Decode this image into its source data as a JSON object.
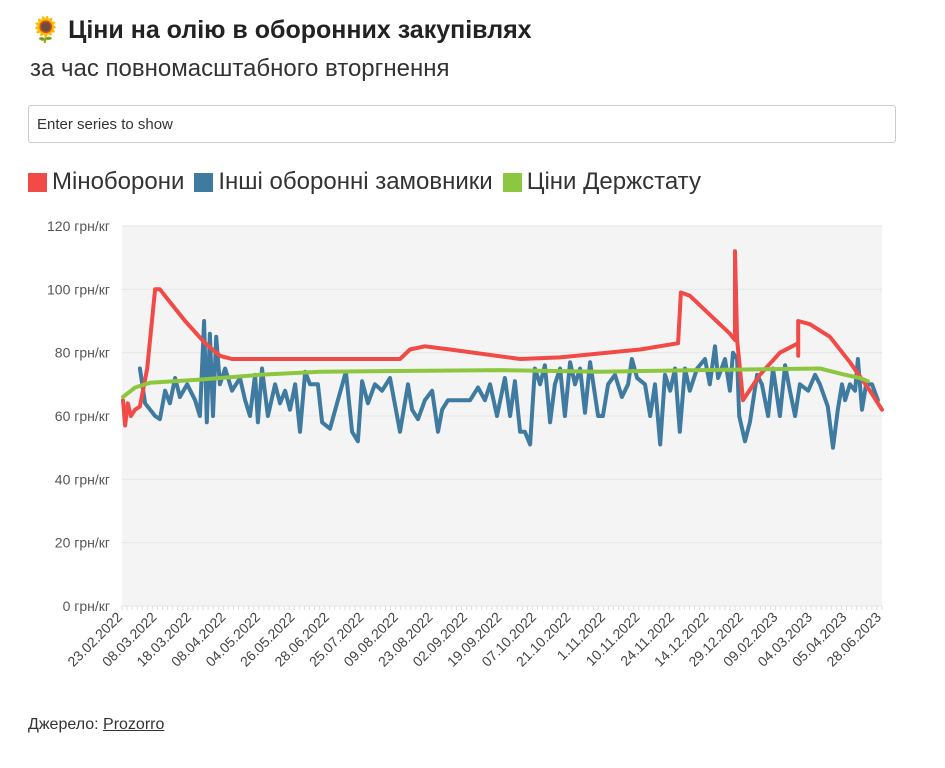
{
  "header": {
    "icon": "sunflower-icon",
    "emoji": "🌻",
    "title": "Ціни на олію в оборонних закупівлях",
    "subtitle": "за час повномасштабного вторгнення"
  },
  "filter": {
    "placeholder": "Enter series to show",
    "value": ""
  },
  "footer": {
    "source_label": "Джерело:",
    "source_link": "Prozorro"
  },
  "chart_data": {
    "type": "line",
    "title": "Ціни на олію в оборонних закупівлях",
    "subtitle": "за час повномасштабного вторгнення",
    "xlabel": "",
    "ylabel": "",
    "x_axis_type": "category",
    "x_tick_labels": [
      "23.02.2022",
      "08.03.2022",
      "18.03.2022",
      "08.04.2022",
      "04.05.2022",
      "26.05.2022",
      "28.06.2022",
      "25.07.2022",
      "09.08.2022",
      "23.08.2022",
      "02.09.2022",
      "19.09.2022",
      "07.10.2022",
      "21.10.2022",
      "1.11.2022",
      "10.11.2022",
      "24.11.2022",
      "14.12.2022",
      "29.12.2022",
      "09.02.2023",
      "04.03.2023",
      "05.04.2023",
      "28.06.2023"
    ],
    "y_ticks": [
      0,
      20,
      40,
      60,
      80,
      100,
      120
    ],
    "y_tick_labels": [
      "0 грн/кг",
      "20 грн/кг",
      "40 грн/кг",
      "60 грн/кг",
      "80 грн/кг",
      "100 грн/кг",
      "120 грн/кг"
    ],
    "ylim": [
      0,
      120
    ],
    "grid": true,
    "legend_position": "top-left",
    "series": [
      {
        "name": "Міноборони",
        "color": "#f24a46",
        "points": [
          [
            0,
            65
          ],
          [
            0.06,
            57
          ],
          [
            0.14,
            64
          ],
          [
            0.23,
            60
          ],
          [
            0.35,
            62
          ],
          [
            0.49,
            63
          ],
          [
            0.7,
            75
          ],
          [
            0.93,
            100
          ],
          [
            1.07,
            100
          ],
          [
            1.36,
            96
          ],
          [
            1.8,
            90
          ],
          [
            2.38,
            83
          ],
          [
            2.81,
            79
          ],
          [
            3.16,
            78
          ],
          [
            8.03,
            78
          ],
          [
            8.32,
            81
          ],
          [
            8.75,
            82
          ],
          [
            9.48,
            81
          ],
          [
            11.51,
            78
          ],
          [
            12.67,
            78.5
          ],
          [
            14.99,
            81
          ],
          [
            16.09,
            83
          ],
          [
            16.17,
            99
          ],
          [
            16.43,
            98
          ],
          [
            17.01,
            92
          ],
          [
            17.59,
            86
          ],
          [
            17.74,
            84
          ],
          [
            17.74,
            112
          ],
          [
            17.8,
            84
          ],
          [
            17.97,
            65
          ],
          [
            18.46,
            73
          ],
          [
            19.04,
            80
          ],
          [
            19.57,
            83
          ],
          [
            19.57,
            79
          ],
          [
            19.57,
            90
          ],
          [
            19.91,
            89
          ],
          [
            20.49,
            85
          ],
          [
            21.07,
            77
          ],
          [
            21.65,
            68
          ],
          [
            22,
            62
          ]
        ]
      },
      {
        "name": "Інші оборонні замовники",
        "color": "#3f7aa0",
        "points": [
          [
            0.49,
            75
          ],
          [
            0.64,
            64
          ],
          [
            0.93,
            60
          ],
          [
            1.07,
            59
          ],
          [
            1.22,
            68
          ],
          [
            1.36,
            64
          ],
          [
            1.51,
            72
          ],
          [
            1.65,
            66
          ],
          [
            1.86,
            70
          ],
          [
            2.09,
            65
          ],
          [
            2.23,
            60
          ],
          [
            2.35,
            90
          ],
          [
            2.43,
            58
          ],
          [
            2.52,
            86
          ],
          [
            2.61,
            60
          ],
          [
            2.7,
            85
          ],
          [
            2.81,
            70
          ],
          [
            2.96,
            75
          ],
          [
            3.16,
            68
          ],
          [
            3.39,
            72
          ],
          [
            3.54,
            65
          ],
          [
            3.68,
            60
          ],
          [
            3.83,
            73
          ],
          [
            3.91,
            58
          ],
          [
            4.03,
            75
          ],
          [
            4.2,
            60
          ],
          [
            4.41,
            70
          ],
          [
            4.55,
            64
          ],
          [
            4.7,
            68
          ],
          [
            4.84,
            62
          ],
          [
            4.99,
            70
          ],
          [
            5.13,
            55
          ],
          [
            5.28,
            74
          ],
          [
            5.42,
            70
          ],
          [
            5.65,
            70
          ],
          [
            5.77,
            58
          ],
          [
            6,
            56
          ],
          [
            6.23,
            65
          ],
          [
            6.46,
            74
          ],
          [
            6.64,
            55
          ],
          [
            6.81,
            52
          ],
          [
            6.93,
            71
          ],
          [
            7.1,
            64
          ],
          [
            7.3,
            70
          ],
          [
            7.51,
            68
          ],
          [
            7.74,
            72
          ],
          [
            8.03,
            55
          ],
          [
            8.26,
            70
          ],
          [
            8.38,
            62
          ],
          [
            8.55,
            59
          ],
          [
            8.75,
            65
          ],
          [
            8.96,
            68
          ],
          [
            9.13,
            55
          ],
          [
            9.25,
            62
          ],
          [
            9.42,
            65
          ],
          [
            9.62,
            65
          ],
          [
            10.06,
            65
          ],
          [
            10.29,
            69
          ],
          [
            10.49,
            65
          ],
          [
            10.64,
            70
          ],
          [
            10.84,
            60
          ],
          [
            11.07,
            72
          ],
          [
            11.22,
            60
          ],
          [
            11.36,
            71
          ],
          [
            11.51,
            55
          ],
          [
            11.65,
            55
          ],
          [
            11.8,
            51
          ],
          [
            11.94,
            75
          ],
          [
            12.09,
            70
          ],
          [
            12.23,
            76
          ],
          [
            12.38,
            58
          ],
          [
            12.52,
            70
          ],
          [
            12.67,
            75
          ],
          [
            12.81,
            60
          ],
          [
            12.96,
            77
          ],
          [
            13.1,
            70
          ],
          [
            13.25,
            75
          ],
          [
            13.39,
            61
          ],
          [
            13.54,
            77
          ],
          [
            13.77,
            60
          ],
          [
            13.91,
            60
          ],
          [
            14.06,
            70
          ],
          [
            14.26,
            73
          ],
          [
            14.46,
            66
          ],
          [
            14.64,
            70
          ],
          [
            14.75,
            78
          ],
          [
            14.9,
            72
          ],
          [
            15.13,
            70
          ],
          [
            15.28,
            60
          ],
          [
            15.42,
            70
          ],
          [
            15.57,
            51
          ],
          [
            15.71,
            73
          ],
          [
            15.86,
            68
          ],
          [
            16,
            75
          ],
          [
            16.14,
            55
          ],
          [
            16.29,
            75
          ],
          [
            16.43,
            68
          ],
          [
            16.64,
            75
          ],
          [
            16.87,
            78
          ],
          [
            17.01,
            70
          ],
          [
            17.16,
            82
          ],
          [
            17.25,
            72
          ],
          [
            17.45,
            78
          ],
          [
            17.59,
            68
          ],
          [
            17.68,
            80
          ],
          [
            17.8,
            78
          ],
          [
            17.86,
            60
          ],
          [
            18.03,
            52
          ],
          [
            18.17,
            58
          ],
          [
            18.38,
            73
          ],
          [
            18.52,
            70
          ],
          [
            18.7,
            60
          ],
          [
            18.84,
            75
          ],
          [
            19.04,
            60
          ],
          [
            19.19,
            76
          ],
          [
            19.33,
            68
          ],
          [
            19.48,
            60
          ],
          [
            19.62,
            70
          ],
          [
            19.86,
            68
          ],
          [
            20.06,
            73
          ],
          [
            20.2,
            70
          ],
          [
            20.43,
            63
          ],
          [
            20.58,
            50
          ],
          [
            20.72,
            62
          ],
          [
            20.84,
            70
          ],
          [
            20.93,
            65
          ],
          [
            21.07,
            70
          ],
          [
            21.22,
            68
          ],
          [
            21.3,
            78
          ],
          [
            21.42,
            62
          ],
          [
            21.54,
            70
          ],
          [
            21.71,
            70
          ],
          [
            21.88,
            65
          ]
        ]
      },
      {
        "name": "Ціни Держстату",
        "color": "#8dc63f",
        "points": [
          [
            0,
            66
          ],
          [
            0.35,
            69
          ],
          [
            0.78,
            70.5
          ],
          [
            2.23,
            71.5
          ],
          [
            3.97,
            73
          ],
          [
            5.71,
            74
          ],
          [
            10.93,
            74.5
          ],
          [
            13.83,
            74
          ],
          [
            16.72,
            74.5
          ],
          [
            20.2,
            75
          ],
          [
            20.93,
            73
          ],
          [
            21.36,
            72
          ],
          [
            21.59,
            71
          ]
        ]
      }
    ]
  }
}
